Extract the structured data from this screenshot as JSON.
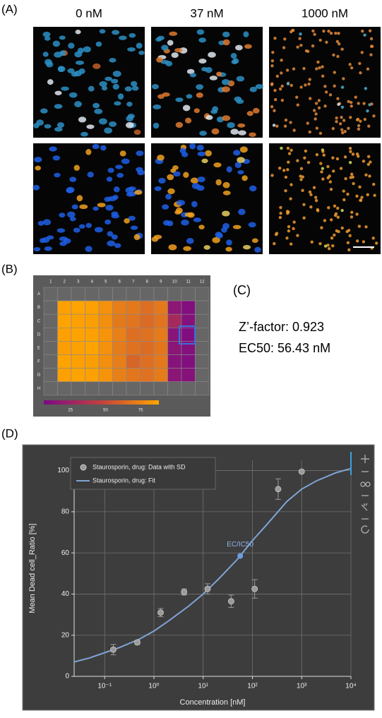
{
  "panels": {
    "a": {
      "label": "(A)",
      "columns": [
        "0 nM",
        "37 nM",
        "1000 nM"
      ]
    },
    "b": {
      "label": "(B)",
      "plate": {
        "columns": [
          "1",
          "2",
          "3",
          "4",
          "5",
          "6",
          "7",
          "8",
          "9",
          "10",
          "11",
          "12"
        ],
        "rows": [
          "A",
          "B",
          "C",
          "D",
          "E",
          "F",
          "G",
          "H"
        ],
        "values": [
          [
            null,
            null,
            null,
            null,
            null,
            null,
            null,
            null,
            null,
            null,
            null,
            null
          ],
          [
            null,
            86,
            87,
            86,
            80,
            72,
            70,
            66,
            70,
            16,
            10,
            null
          ],
          [
            null,
            87,
            86,
            85,
            79,
            70,
            68,
            64,
            68,
            30,
            12,
            null
          ],
          [
            null,
            86,
            87,
            86,
            81,
            73,
            66,
            67,
            71,
            14,
            9,
            null
          ],
          [
            null,
            85,
            86,
            87,
            80,
            71,
            67,
            65,
            69,
            15,
            11,
            null
          ],
          [
            null,
            87,
            86,
            85,
            79,
            72,
            62,
            66,
            70,
            13,
            10,
            null
          ],
          [
            null,
            86,
            87,
            86,
            81,
            73,
            69,
            67,
            71,
            15,
            12,
            null
          ],
          [
            null,
            null,
            null,
            null,
            null,
            null,
            null,
            null,
            null,
            null,
            null,
            null
          ]
        ],
        "colormap": [
          "#7a0a85",
          "#c2403f",
          "#ffa500"
        ],
        "range": [
          6,
          88
        ],
        "ticks": [
          25,
          50,
          75
        ]
      }
    },
    "c": {
      "label": "(C)",
      "lines": [
        "Z’-factor: 0.923",
        "EC50: 56.43 nM"
      ]
    },
    "d": {
      "label": "(D)"
    }
  },
  "chart_data": {
    "type": "scatter-fit",
    "x_label": "Concentration [nM]",
    "y_label": "Mean Dead cell_Ratio [%]",
    "xlim": [
      0.024,
      10000
    ],
    "log_x": true,
    "xticks": [
      {
        "value": 0.1,
        "label": "10⁻¹"
      },
      {
        "value": 1,
        "label": "10⁰"
      },
      {
        "value": 10,
        "label": "10¹"
      },
      {
        "value": 100,
        "label": "10²"
      },
      {
        "value": 1000,
        "label": "10³"
      },
      {
        "value": 10000,
        "label": "10⁴"
      }
    ],
    "ylim": [
      0,
      105
    ],
    "yticks": [
      0,
      20,
      40,
      60,
      80,
      100
    ],
    "grid": true,
    "series": [
      {
        "name": "Staurosporin, drug: Data with SD",
        "color": "#9a9a9a",
        "x": [
          0.15,
          0.46,
          1.37,
          4.1,
          12.3,
          37,
          111,
          333,
          1000
        ],
        "values": [
          13,
          16.5,
          31,
          41,
          42.5,
          36.5,
          42.5,
          91,
          99.5
        ],
        "errors": [
          2.5,
          1,
          2,
          1.5,
          2.5,
          3,
          4.5,
          5,
          0.5
        ]
      },
      {
        "name": "Staurosporin, drug: Fit",
        "color": "#7fa4d6",
        "x": [
          0.024,
          0.05,
          0.1,
          0.2,
          0.5,
          1,
          2,
          5,
          10,
          20,
          50,
          100,
          200,
          500,
          1000,
          2000,
          5000,
          10000
        ],
        "values": [
          7,
          9,
          11.5,
          14,
          18,
          22,
          27,
          34,
          40,
          47,
          57,
          66,
          74,
          85,
          91,
          95,
          99,
          101
        ]
      }
    ],
    "annotation": {
      "text": "EC/IC50",
      "x": 56.43,
      "y": 58.5
    }
  }
}
